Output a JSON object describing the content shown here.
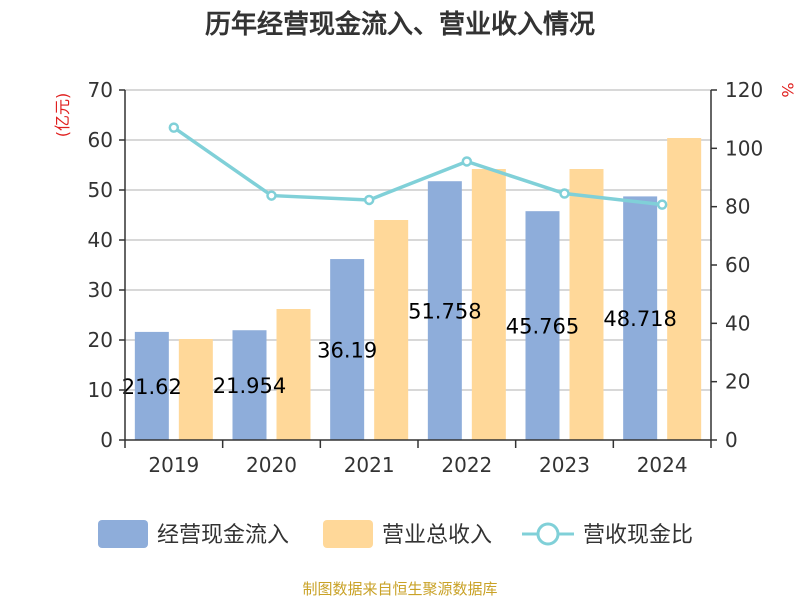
{
  "chart_data": {
    "type": "bar",
    "title": "历年经营现金流入、营业收入情况",
    "left_unit": "(亿元)",
    "right_unit": "%",
    "categories": [
      "2019",
      "2020",
      "2021",
      "2022",
      "2023",
      "2024"
    ],
    "ylim": [
      0,
      70
    ],
    "yticks": [
      0,
      10,
      20,
      30,
      40,
      50,
      60,
      70
    ],
    "y2lim": [
      0,
      120
    ],
    "y2ticks": [
      0,
      20,
      40,
      60,
      80,
      100,
      120
    ],
    "grid": true,
    "legend_position": "bottom",
    "series": [
      {
        "name": "经营现金流入",
        "kind": "bar",
        "axis": "left",
        "color": "#8EADDA",
        "values": [
          21.62,
          21.954,
          36.19,
          51.758,
          45.765,
          48.718
        ],
        "labels": [
          "21.62",
          "21.954",
          "36.19",
          "51.758",
          "45.765",
          "48.718"
        ]
      },
      {
        "name": "营业总收入",
        "kind": "bar",
        "axis": "left",
        "color": "#FFD899",
        "values": [
          20.2,
          26.2,
          44.0,
          54.2,
          54.2,
          60.4
        ]
      },
      {
        "name": "营收现金比",
        "kind": "line",
        "axis": "right",
        "color": "#80D0D8",
        "values": [
          107.1,
          83.8,
          82.3,
          95.5,
          84.5,
          80.7
        ]
      }
    ],
    "source": "制图数据来自恒生聚源数据库"
  },
  "colors": {
    "axis": "#333333",
    "grid": "#CCCCCC",
    "unit": "#E0201F",
    "source": "#C9A227"
  }
}
